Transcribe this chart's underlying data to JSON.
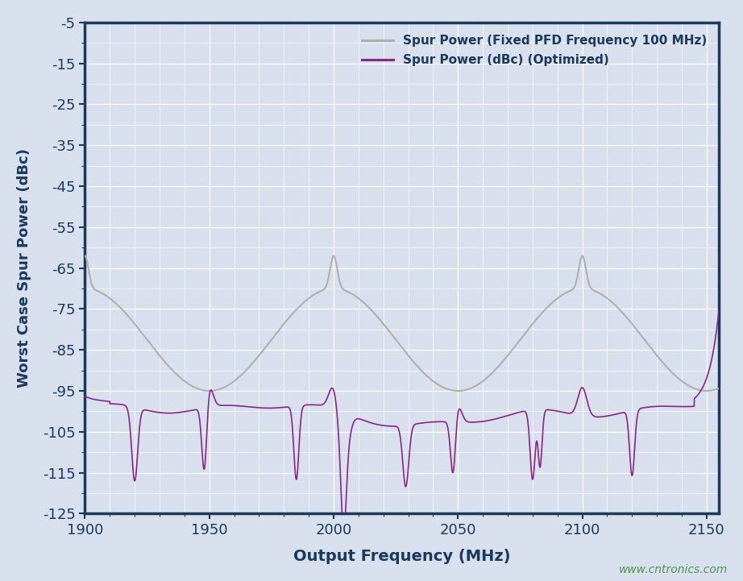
{
  "xlabel": "Output Frequency (MHz)",
  "ylabel": "Worst Case Spur Power (dBc)",
  "xlim": [
    1900,
    2155
  ],
  "ylim": [
    -125,
    -5
  ],
  "xticks": [
    1900,
    1950,
    2000,
    2050,
    2100,
    2150
  ],
  "yticks": [
    -5,
    -15,
    -25,
    -35,
    -45,
    -55,
    -65,
    -75,
    -85,
    -95,
    -105,
    -115,
    -125
  ],
  "background_color": "#d8dfed",
  "plot_bg_color": "#d8dfed",
  "grid_color": "#ffffff",
  "axis_color": "#1a3a5c",
  "label_color": "#1a3a5c",
  "legend_label_gray": "Spur Power (Fixed PFD Frequency 100 MHz)",
  "legend_label_purple": "Spur Power (dBc) (Optimized)",
  "gray_color": "#b0b0b0",
  "purple_color": "#8b2585",
  "watermark": "www.cntronics.com",
  "watermark_color": "#4a9a4a",
  "freq_start": 1900,
  "freq_end": 2155
}
